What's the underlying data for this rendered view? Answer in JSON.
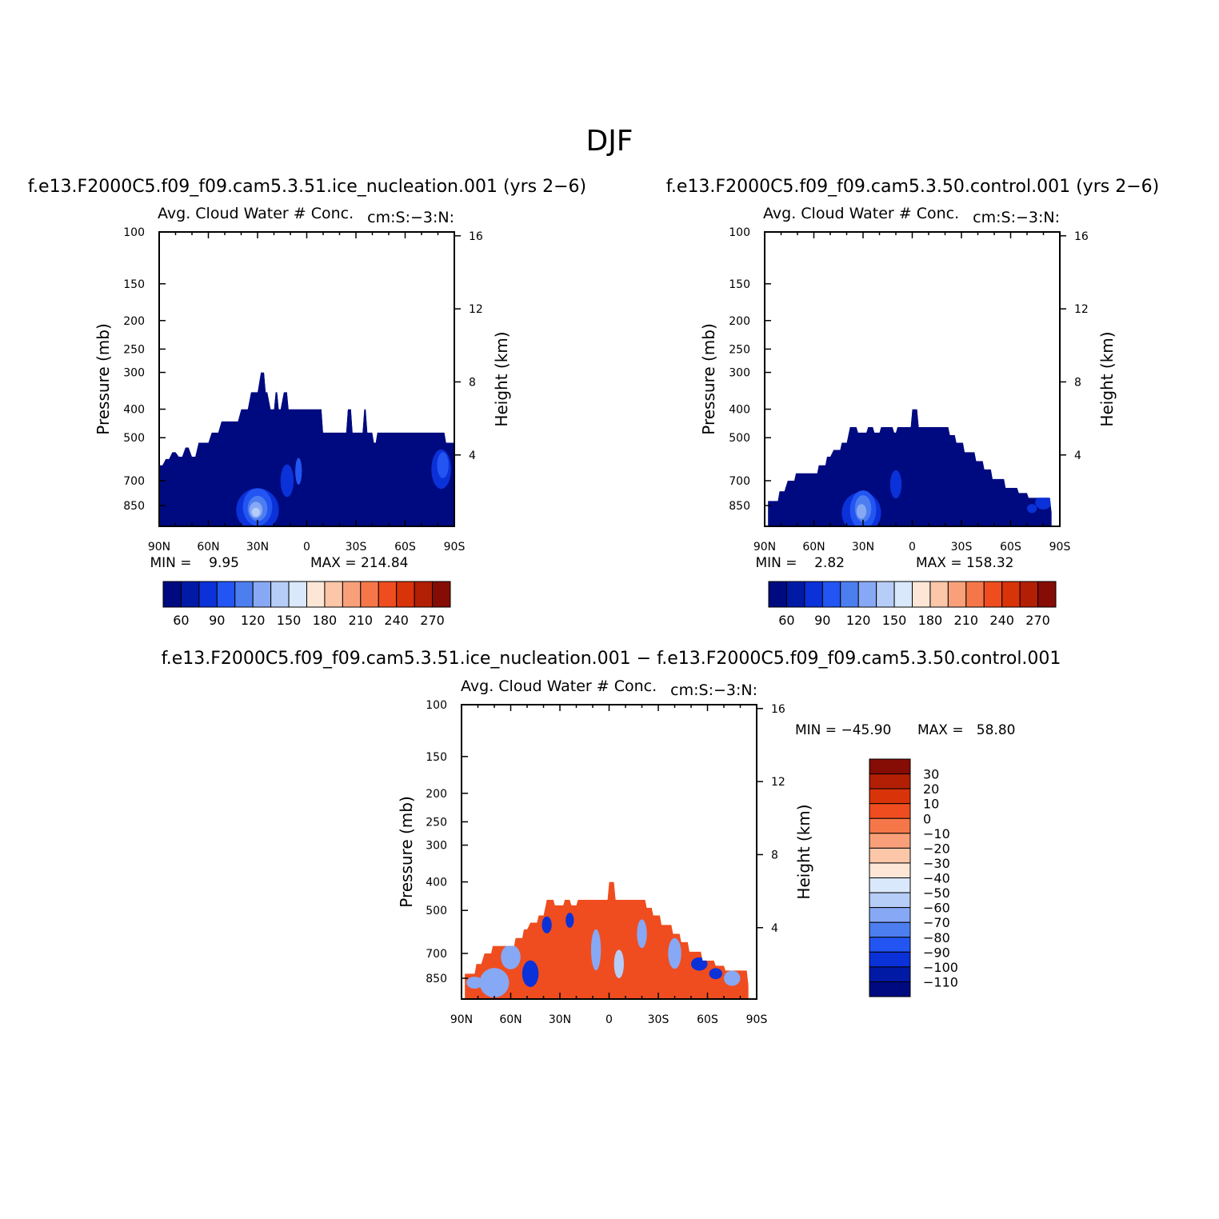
{
  "page_title": "DJF",
  "chart_data": [
    {
      "type": "heatmap",
      "case": "f.e13.F2000C5.f09_f09.cam5.3.51.ice_nucleation.001 (yrs 2−6)",
      "title": "Avg. Cloud Water # Conc.",
      "region": "cm:S:−3:N:",
      "xlabel": "",
      "ylabel": "Pressure (mb)",
      "ylabel_right": "Height (km)",
      "x_ticks": [
        "90N",
        "60N",
        "30N",
        "0",
        "30S",
        "60S",
        "90S"
      ],
      "y_ticks": [
        "100",
        "150",
        "200",
        "250",
        "300",
        "400",
        "500",
        "700",
        "850"
      ],
      "y_ticks_right": [
        "16",
        "12",
        "8",
        "4"
      ],
      "min_label": "MIN =    9.95",
      "max_label": "MAX = 214.84",
      "colorbar_labels": [
        "60",
        "90",
        "120",
        "150",
        "180",
        "210",
        "240",
        "270"
      ],
      "colorbar_colors": [
        "#000a80",
        "#001aa6",
        "#0b31d8",
        "#2255f2",
        "#4d7ef0",
        "#87a8f5",
        "#b6cdf7",
        "#d9e8fb",
        "#fde6d6",
        "#fcc6a8",
        "#f9a07a",
        "#f57749",
        "#ef4d1f",
        "#d9330a",
        "#b21f05",
        "#860c06"
      ],
      "top_profile": [
        [
          90,
          620
        ],
        [
          88,
          620
        ],
        [
          86,
          590
        ],
        [
          84,
          590
        ],
        [
          82,
          560
        ],
        [
          80,
          560
        ],
        [
          78,
          580
        ],
        [
          76,
          580
        ],
        [
          74,
          540
        ],
        [
          72,
          540
        ],
        [
          70,
          580
        ],
        [
          68,
          580
        ],
        [
          66,
          520
        ],
        [
          64,
          520
        ],
        [
          60,
          520
        ],
        [
          58,
          480
        ],
        [
          54,
          480
        ],
        [
          52,
          440
        ],
        [
          42,
          440
        ],
        [
          40,
          400
        ],
        [
          36,
          400
        ],
        [
          34,
          350
        ],
        [
          30,
          350
        ],
        [
          28,
          300
        ],
        [
          26,
          300
        ],
        [
          25,
          350
        ],
        [
          24,
          350
        ],
        [
          22,
          400
        ],
        [
          20,
          400
        ],
        [
          19,
          350
        ],
        [
          18,
          350
        ],
        [
          17,
          400
        ],
        [
          16,
          400
        ],
        [
          14,
          350
        ],
        [
          12,
          350
        ],
        [
          11,
          400
        ],
        [
          -9,
          400
        ],
        [
          -10,
          480
        ],
        [
          -24,
          480
        ],
        [
          -25,
          400
        ],
        [
          -27,
          400
        ],
        [
          -28,
          480
        ],
        [
          -34,
          480
        ],
        [
          -35,
          400
        ],
        [
          -36,
          400
        ],
        [
          -37,
          480
        ],
        [
          -40,
          480
        ],
        [
          -41,
          520
        ],
        [
          -42,
          520
        ],
        [
          -43,
          480
        ],
        [
          -84,
          480
        ],
        [
          -85,
          520
        ],
        [
          -90,
          520
        ]
      ],
      "blobs": [
        {
          "lat": 30,
          "p": 880,
          "rx": 13,
          "rp": 300,
          "level": 2
        },
        {
          "lat": 30,
          "p": 860,
          "rx": 9,
          "rp": 230,
          "level": 3
        },
        {
          "lat": 30,
          "p": 870,
          "rx": 6,
          "rp": 150,
          "level": 4
        },
        {
          "lat": 31,
          "p": 880,
          "rx": 4,
          "rp": 90,
          "level": 5
        },
        {
          "lat": 31,
          "p": 895,
          "rx": 2.5,
          "rp": 40,
          "level": 6
        },
        {
          "lat": 12,
          "p": 700,
          "rx": 4,
          "rp": 160,
          "level": 2
        },
        {
          "lat": 5,
          "p": 650,
          "rx": 2,
          "rp": 120,
          "level": 3
        },
        {
          "lat": -82,
          "p": 640,
          "rx": 6,
          "rp": 180,
          "level": 2
        },
        {
          "lat": -83,
          "p": 620,
          "rx": 3.5,
          "rp": 110,
          "level": 3
        }
      ]
    },
    {
      "type": "heatmap",
      "case": "f.e13.F2000C5.f09_f09.cam5.3.50.control.001 (yrs 2−6)",
      "title": "Avg. Cloud Water # Conc.",
      "region": "cm:S:−3:N:",
      "xlabel": "",
      "ylabel": "Pressure (mb)",
      "ylabel_right": "Height (km)",
      "x_ticks": [
        "90N",
        "60N",
        "30N",
        "0",
        "30S",
        "60S",
        "90S"
      ],
      "y_ticks": [
        "100",
        "150",
        "200",
        "250",
        "300",
        "400",
        "500",
        "700",
        "850"
      ],
      "y_ticks_right": [
        "16",
        "12",
        "8",
        "4"
      ],
      "min_label": "MIN =    2.82",
      "max_label": "MAX = 158.32",
      "colorbar_labels": [
        "60",
        "90",
        "120",
        "150",
        "180",
        "210",
        "240",
        "270"
      ],
      "colorbar_colors": [
        "#000a80",
        "#001aa6",
        "#0b31d8",
        "#2255f2",
        "#4d7ef0",
        "#87a8f5",
        "#b6cdf7",
        "#d9e8fb",
        "#fde6d6",
        "#fcc6a8",
        "#f9a07a",
        "#f57749",
        "#ef4d1f",
        "#d9330a",
        "#b21f05",
        "#860c06"
      ],
      "top_profile": [
        [
          88,
          820
        ],
        [
          82,
          820
        ],
        [
          81,
          760
        ],
        [
          78,
          760
        ],
        [
          76,
          700
        ],
        [
          72,
          700
        ],
        [
          71,
          660
        ],
        [
          68,
          660
        ],
        [
          66,
          660
        ],
        [
          58,
          660
        ],
        [
          57,
          620
        ],
        [
          53,
          620
        ],
        [
          52,
          580
        ],
        [
          50,
          580
        ],
        [
          48,
          550
        ],
        [
          44,
          550
        ],
        [
          43,
          520
        ],
        [
          40,
          520
        ],
        [
          38,
          460
        ],
        [
          34,
          460
        ],
        [
          33,
          480
        ],
        [
          28,
          480
        ],
        [
          27,
          460
        ],
        [
          24,
          460
        ],
        [
          23,
          480
        ],
        [
          20,
          480
        ],
        [
          19,
          460
        ],
        [
          12,
          460
        ],
        [
          11,
          480
        ],
        [
          10,
          480
        ],
        [
          9,
          460
        ],
        [
          1,
          460
        ],
        [
          0,
          400
        ],
        [
          -3,
          400
        ],
        [
          -4,
          460
        ],
        [
          -22,
          460
        ],
        [
          -23,
          490
        ],
        [
          -26,
          490
        ],
        [
          -27,
          520
        ],
        [
          -31,
          520
        ],
        [
          -32,
          560
        ],
        [
          -38,
          560
        ],
        [
          -39,
          600
        ],
        [
          -43,
          600
        ],
        [
          -44,
          640
        ],
        [
          -48,
          640
        ],
        [
          -49,
          690
        ],
        [
          -56,
          690
        ],
        [
          -57,
          740
        ],
        [
          -64,
          740
        ],
        [
          -65,
          770
        ],
        [
          -70,
          770
        ],
        [
          -71,
          800
        ],
        [
          -84,
          800
        ],
        [
          -85,
          900
        ]
      ],
      "blobs": [
        {
          "lat": 31,
          "p": 900,
          "rx": 12,
          "rp": 320,
          "level": 2
        },
        {
          "lat": 30,
          "p": 880,
          "rx": 8,
          "rp": 250,
          "level": 3
        },
        {
          "lat": 30,
          "p": 870,
          "rx": 5,
          "rp": 160,
          "level": 4
        },
        {
          "lat": 31,
          "p": 890,
          "rx": 3,
          "rp": 80,
          "level": 5
        },
        {
          "lat": 10,
          "p": 720,
          "rx": 3.5,
          "rp": 140,
          "level": 2
        },
        {
          "lat": -80,
          "p": 830,
          "rx": 5,
          "rp": 70,
          "level": 2
        },
        {
          "lat": -73,
          "p": 870,
          "rx": 3,
          "rp": 40,
          "level": 2
        }
      ]
    },
    {
      "type": "heatmap",
      "case": "f.e13.F2000C5.f09_f09.cam5.3.51.ice_nucleation.001 − f.e13.F2000C5.f09_f09.cam5.3.50.control.001",
      "title": "Avg. Cloud Water # Conc.",
      "region": "cm:S:−3:N:",
      "xlabel": "",
      "ylabel": "Pressure (mb)",
      "ylabel_right": "Height (km)",
      "x_ticks": [
        "90N",
        "60N",
        "30N",
        "0",
        "30S",
        "60S",
        "90S"
      ],
      "y_ticks": [
        "100",
        "150",
        "200",
        "250",
        "300",
        "400",
        "500",
        "700",
        "850"
      ],
      "y_ticks_right": [
        "16",
        "12",
        "8",
        "4"
      ],
      "min_label": "MIN = −45.90",
      "max_label": "MAX =   58.80",
      "colorbar_labels": [
        "30",
        "20",
        "10",
        "0",
        "−10",
        "−20",
        "−30",
        "−40",
        "−50",
        "−60",
        "−70",
        "−80",
        "−90",
        "−100",
        "−110"
      ],
      "colorbar_colors": [
        "#860c06",
        "#b21f05",
        "#d9330a",
        "#ef4d1f",
        "#f57749",
        "#f9a07a",
        "#fcc6a8",
        "#fde6d6",
        "#d9e8fb",
        "#b6cdf7",
        "#87a8f5",
        "#4d7ef0",
        "#2255f2",
        "#0b31d8",
        "#001aa6",
        "#000a80"
      ],
      "top_profile": [
        [
          88,
          820
        ],
        [
          82,
          820
        ],
        [
          81,
          760
        ],
        [
          78,
          760
        ],
        [
          76,
          700
        ],
        [
          72,
          700
        ],
        [
          71,
          660
        ],
        [
          68,
          660
        ],
        [
          58,
          660
        ],
        [
          57,
          620
        ],
        [
          53,
          620
        ],
        [
          52,
          580
        ],
        [
          50,
          580
        ],
        [
          48,
          550
        ],
        [
          44,
          550
        ],
        [
          43,
          520
        ],
        [
          40,
          520
        ],
        [
          38,
          460
        ],
        [
          34,
          460
        ],
        [
          33,
          480
        ],
        [
          28,
          480
        ],
        [
          27,
          460
        ],
        [
          24,
          460
        ],
        [
          23,
          480
        ],
        [
          20,
          480
        ],
        [
          19,
          460
        ],
        [
          1,
          460
        ],
        [
          0,
          400
        ],
        [
          -3,
          400
        ],
        [
          -4,
          460
        ],
        [
          -22,
          460
        ],
        [
          -23,
          490
        ],
        [
          -26,
          490
        ],
        [
          -27,
          520
        ],
        [
          -31,
          520
        ],
        [
          -32,
          560
        ],
        [
          -38,
          560
        ],
        [
          -39,
          600
        ],
        [
          -43,
          600
        ],
        [
          -44,
          640
        ],
        [
          -48,
          640
        ],
        [
          -49,
          690
        ],
        [
          -56,
          690
        ],
        [
          -57,
          740
        ],
        [
          -64,
          740
        ],
        [
          -65,
          770
        ],
        [
          -70,
          770
        ],
        [
          -71,
          800
        ],
        [
          -84,
          800
        ],
        [
          -85,
          900
        ]
      ],
      "blobs": [
        {
          "lat": 70,
          "p": 880,
          "rx": 9,
          "rp": 180,
          "level": 5
        },
        {
          "lat": 82,
          "p": 880,
          "rx": 5,
          "rp": 60,
          "level": 5
        },
        {
          "lat": 60,
          "p": 720,
          "rx": 6,
          "rp": 120,
          "level": 5
        },
        {
          "lat": 8,
          "p": 680,
          "rx": 3,
          "rp": 200,
          "level": 5
        },
        {
          "lat": -6,
          "p": 760,
          "rx": 3,
          "rp": 150,
          "level": 6
        },
        {
          "lat": -20,
          "p": 600,
          "rx": 3,
          "rp": 120,
          "level": 5
        },
        {
          "lat": -40,
          "p": 700,
          "rx": 4,
          "rp": 150,
          "level": 5
        },
        {
          "lat": -75,
          "p": 850,
          "rx": 5,
          "rp": 80,
          "level": 5
        },
        {
          "lat": 48,
          "p": 820,
          "rx": 5,
          "rp": 150,
          "level": 2
        },
        {
          "lat": 38,
          "p": 560,
          "rx": 3,
          "rp": 60,
          "level": 2
        },
        {
          "lat": 24,
          "p": 540,
          "rx": 2.5,
          "rp": 50,
          "level": 2
        },
        {
          "lat": -55,
          "p": 760,
          "rx": 5,
          "rp": 60,
          "level": 2
        },
        {
          "lat": -68,
          "p": 720,
          "rx": 3,
          "rp": 30,
          "level": 1
        },
        {
          "lat": -65,
          "p": 820,
          "rx": 4,
          "rp": 50,
          "level": 2
        }
      ]
    }
  ]
}
